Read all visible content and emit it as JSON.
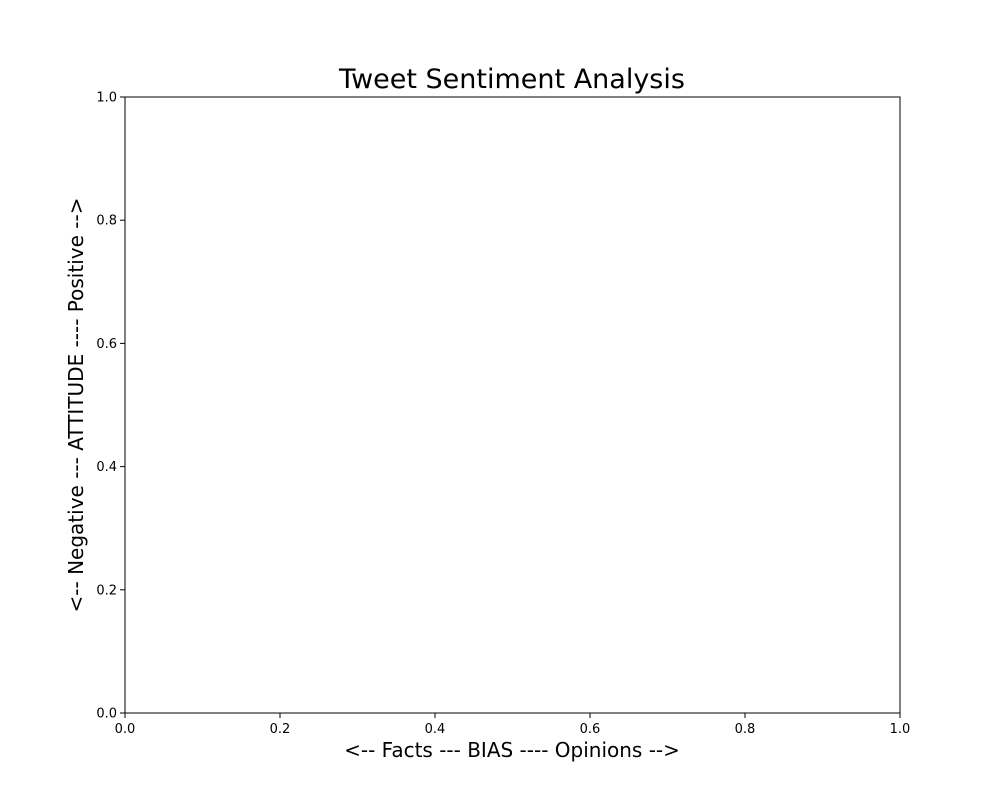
{
  "chart_data": {
    "type": "scatter",
    "title": "Tweet Sentiment Analysis",
    "xlabel": "<-- Facts --- BIAS ---- Opinions -->",
    "ylabel": "<-- Negative --- ATTITUDE ---- Positive -->",
    "xlim": [
      0.0,
      1.0
    ],
    "ylim": [
      0.0,
      1.0
    ],
    "xticks": [
      "0.0",
      "0.2",
      "0.4",
      "0.6",
      "0.8",
      "1.0"
    ],
    "yticks": [
      "0.0",
      "0.2",
      "0.4",
      "0.6",
      "0.8",
      "1.0"
    ],
    "x": [],
    "y": [],
    "grid": false,
    "legend": "none"
  }
}
